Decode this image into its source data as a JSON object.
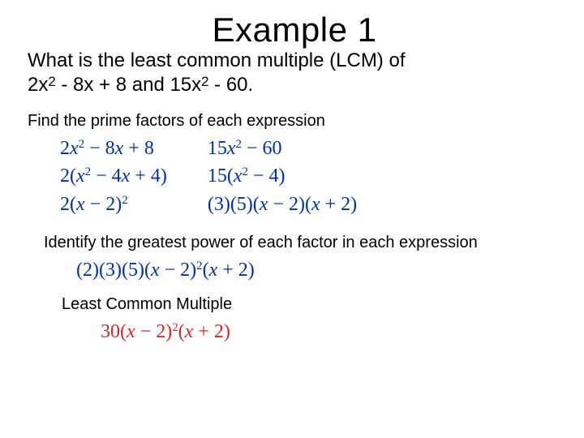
{
  "title": "Example 1",
  "question_line1": "What is the least common multiple (LCM) of",
  "question_expr_a_prefix": "2x",
  "question_expr_a_sup": "2",
  "question_expr_a_mid": " - 8x + 8 and 15x",
  "question_expr_b_sup": "2",
  "question_expr_rest": " - 60.",
  "step1": "Find the prime factors of each expression",
  "step2": "Identify the greatest power of each factor in each expression",
  "step3": "Least Common Multiple",
  "colors": {
    "text": "#000000",
    "math_blue": "#0033a0",
    "result_red": "#d8262a",
    "background": "#ffffff"
  },
  "fonts": {
    "body_family": "Comic Sans MS",
    "math_family": "Times New Roman (italic)",
    "title_size_pt": 32,
    "question_size_pt": 18,
    "step_size_pt": 15,
    "math_size_pt": 18
  },
  "factor_table": {
    "left": [
      {
        "pre": "2",
        "var": "x",
        "sup": "2",
        "post": "− 8",
        "var2": "x",
        "post2": "+ 8"
      },
      {
        "pre": "2(",
        "var": "x",
        "sup": "2",
        "post": "− 4",
        "var2": "x",
        "post2": "+ 4)"
      },
      {
        "pre": "2(",
        "var": "x",
        "sup": "",
        "post": "− 2)",
        "outer_sup": "2"
      }
    ],
    "right": [
      {
        "pre": "15",
        "var": "x",
        "sup": "2",
        "post": "− 60"
      },
      {
        "pre": "15(",
        "var": "x",
        "sup": "2",
        "post": "− 4)"
      },
      {
        "pre": "(3)(5)(",
        "var": "x",
        "post": "− 2)(",
        "var2": "x",
        "post2": "+ 2)"
      }
    ]
  },
  "gcf_line": {
    "pre": "(2)(3)(5)(",
    "var": "x",
    "post": "− 2)",
    "sup": "2",
    "post2": "(",
    "var2": "x",
    "post3": "+ 2)"
  },
  "lcm_line": {
    "pre": "30(",
    "var": "x",
    "post": "− 2)",
    "sup": "2",
    "post2": "(",
    "var2": "x",
    "post3": "+ 2)"
  }
}
